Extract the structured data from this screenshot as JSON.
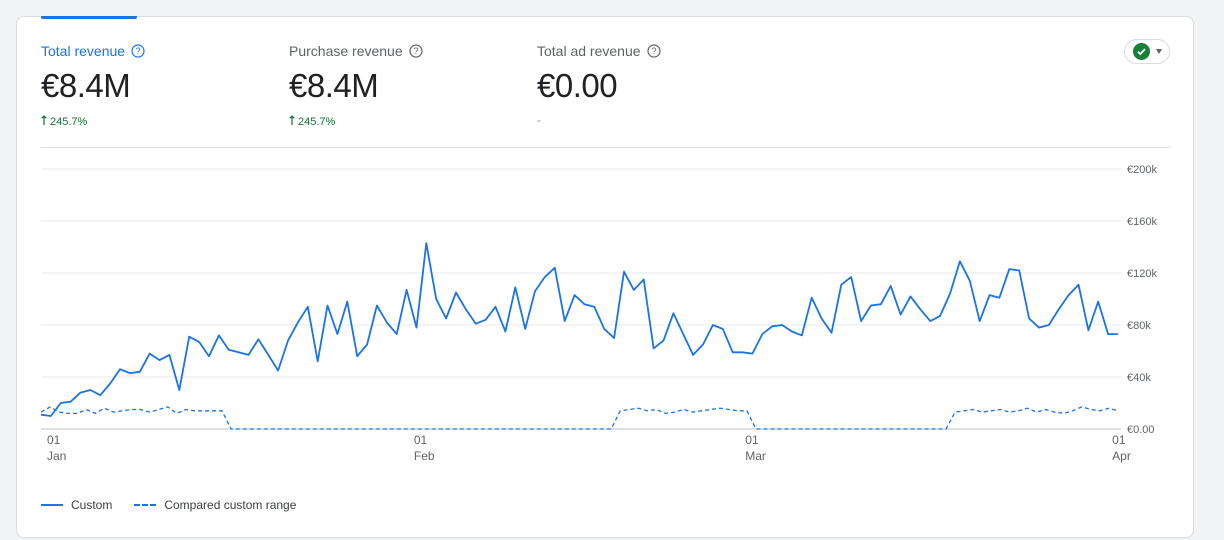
{
  "metrics": [
    {
      "label": "Total revenue",
      "value": "€8.4M",
      "change": "245.7%",
      "trend": "up",
      "active": true
    },
    {
      "label": "Purchase revenue",
      "value": "€8.4M",
      "change": "245.7%",
      "trend": "up",
      "active": false
    },
    {
      "label": "Total ad revenue",
      "value": "€0.00",
      "change": "-",
      "trend": "none",
      "active": false
    }
  ],
  "colors": {
    "accent": "#1a73e8",
    "positive": "#137333",
    "status_ok": "#188038"
  },
  "status_icon": "check-circle-icon",
  "legend": {
    "custom": "Custom",
    "compared": "Compared custom range"
  },
  "chart_data": {
    "type": "line",
    "x_start": "2025-01-01",
    "x_end": "2025-04-02",
    "x_ticks": [
      {
        "date": "2025-01-01",
        "day": "01",
        "month": "Jan"
      },
      {
        "date": "2025-02-01",
        "day": "01",
        "month": "Feb"
      },
      {
        "date": "2025-03-01",
        "day": "01",
        "month": "Mar"
      },
      {
        "date": "2025-04-01",
        "day": "01",
        "month": "Apr"
      }
    ],
    "y_ticks": [
      "€0.00",
      "€40k",
      "€80k",
      "€120k",
      "€160k",
      "€200k"
    ],
    "ylim": [
      0,
      200000
    ],
    "grid": true,
    "series": [
      {
        "name": "Custom",
        "style": "solid",
        "values": [
          11000,
          10000,
          20000,
          21000,
          28000,
          30000,
          26000,
          35000,
          46000,
          43000,
          44000,
          58000,
          53000,
          57000,
          30000,
          71000,
          67000,
          56000,
          72000,
          61000,
          59000,
          57000,
          69000,
          57000,
          45000,
          68000,
          82000,
          94000,
          52000,
          95000,
          73000,
          98000,
          56000,
          65000,
          95000,
          82000,
          73000,
          107000,
          78000,
          143000,
          100000,
          85000,
          105000,
          92000,
          81000,
          84000,
          94000,
          75000,
          109000,
          77000,
          106000,
          117000,
          124000,
          83000,
          103000,
          96000,
          94000,
          77000,
          70000,
          121000,
          107000,
          115000,
          62000,
          68000,
          89000,
          73000,
          57000,
          65000,
          80000,
          77000,
          59000,
          59000,
          58000,
          73000,
          79000,
          80000,
          75000,
          72000,
          101000,
          85000,
          74000,
          111000,
          117000,
          83000,
          95000,
          96000,
          110000,
          88000,
          102000,
          92000,
          83000,
          87000,
          104000,
          129000,
          114000,
          83000,
          103000,
          101000,
          123000,
          122000,
          85000,
          78000,
          80000,
          92000,
          103000,
          111000,
          76000,
          98000,
          73000,
          73000
        ]
      },
      {
        "name": "Compared custom range",
        "style": "dashed",
        "values": [
          13000,
          17000,
          13000,
          12000,
          12000,
          15000,
          12000,
          16000,
          13000,
          14000,
          15000,
          15000,
          13000,
          15000,
          17000,
          12000,
          15000,
          14000,
          14000,
          14000,
          14000,
          0,
          0,
          0,
          0,
          0,
          0,
          0,
          0,
          0,
          0,
          0,
          0,
          0,
          0,
          0,
          0,
          0,
          0,
          0,
          0,
          0,
          0,
          0,
          0,
          0,
          0,
          0,
          0,
          0,
          0,
          0,
          0,
          0,
          0,
          0,
          0,
          0,
          0,
          0,
          0,
          0,
          0,
          0,
          14000,
          15000,
          16000,
          14000,
          15000,
          12000,
          13000,
          15000,
          13000,
          14000,
          15000,
          16000,
          15000,
          14000,
          14000,
          0,
          0,
          0,
          0,
          0,
          0,
          0,
          0,
          0,
          0,
          0,
          0,
          0,
          0,
          0,
          0,
          0,
          0,
          0,
          0,
          0,
          0,
          13000,
          14000,
          15000,
          13000,
          14000,
          15000,
          13000,
          14000,
          16000,
          13000,
          15000,
          13000,
          12000,
          14000,
          17000,
          15000,
          14000,
          16000,
          14000
        ]
      }
    ]
  }
}
